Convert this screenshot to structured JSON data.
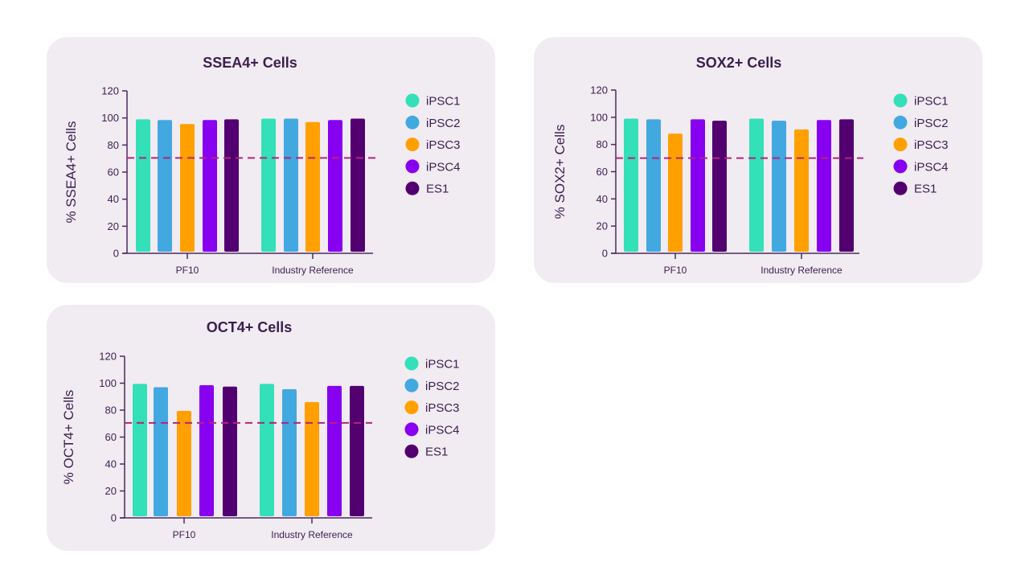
{
  "colors": {
    "iPSC1": "#33e0b8",
    "iPSC2": "#42a8e0",
    "iPSC3": "#ffa000",
    "iPSC4": "#8800f0",
    "ES1": "#520070",
    "axis": "#4a2a5e",
    "threshold": "#b0267a",
    "panel": "#f1ebf2"
  },
  "chart_data": [
    {
      "type": "bar",
      "title": "SSEA4+ Cells",
      "xlabel": "",
      "ylabel": "% SSEA4+ Cells",
      "ylim": [
        0,
        120
      ],
      "yticks": [
        0,
        20,
        40,
        60,
        80,
        100,
        120
      ],
      "categories": [
        "PF10",
        "Industry Reference"
      ],
      "series": [
        {
          "name": "iPSC1",
          "values": [
            99,
            99.5
          ]
        },
        {
          "name": "iPSC2",
          "values": [
            98.5,
            99.5
          ]
        },
        {
          "name": "iPSC3",
          "values": [
            95.5,
            97
          ]
        },
        {
          "name": "iPSC4",
          "values": [
            98.5,
            98.5
          ]
        },
        {
          "name": "ES1",
          "values": [
            99,
            99.5
          ]
        }
      ],
      "threshold": 70.5,
      "legend": "right",
      "grid": false
    },
    {
      "type": "bar",
      "title": "SOX2+ Cells",
      "xlabel": "",
      "ylabel": "% SOX2+ Cells",
      "ylim": [
        0,
        120
      ],
      "yticks": [
        0,
        20,
        40,
        60,
        80,
        100,
        120
      ],
      "categories": [
        "PF10",
        "Industry Reference"
      ],
      "series": [
        {
          "name": "iPSC1",
          "values": [
            99,
            99
          ]
        },
        {
          "name": "iPSC2",
          "values": [
            98.5,
            97.5
          ]
        },
        {
          "name": "iPSC3",
          "values": [
            88,
            91
          ]
        },
        {
          "name": "iPSC4",
          "values": [
            98.5,
            98
          ]
        },
        {
          "name": "ES1",
          "values": [
            97.5,
            98.5
          ]
        }
      ],
      "threshold": 70,
      "legend": "right",
      "grid": false
    },
    {
      "type": "bar",
      "title": "OCT4+ Cells",
      "xlabel": "",
      "ylabel": "% OCT4+ Cells",
      "ylim": [
        0,
        120
      ],
      "yticks": [
        0,
        20,
        40,
        60,
        80,
        100,
        120
      ],
      "categories": [
        "PF10",
        "Industry Reference"
      ],
      "series": [
        {
          "name": "iPSC1",
          "values": [
            99.5,
            99.5
          ]
        },
        {
          "name": "iPSC2",
          "values": [
            97,
            95.5
          ]
        },
        {
          "name": "iPSC3",
          "values": [
            79.5,
            86
          ]
        },
        {
          "name": "iPSC4",
          "values": [
            98.5,
            98
          ]
        },
        {
          "name": "ES1",
          "values": [
            97.5,
            98
          ]
        }
      ],
      "threshold": 70.5,
      "legend": "right",
      "grid": false
    }
  ]
}
